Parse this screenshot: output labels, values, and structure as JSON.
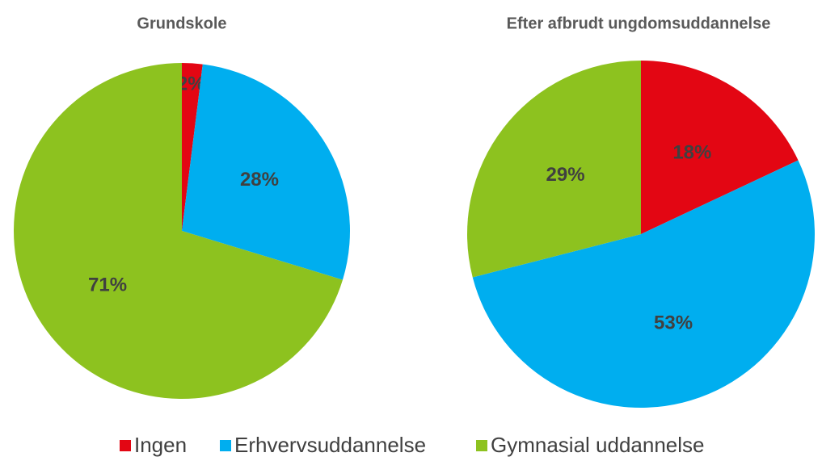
{
  "chart_data": [
    {
      "type": "pie",
      "title": "Grundskole",
      "categories": [
        "Ingen",
        "Erhvervsuddannelse",
        "Gymnasial uddannelse"
      ],
      "colors": [
        "#e30613",
        "#00aeef",
        "#8dc21f"
      ],
      "values": [
        2,
        28,
        71
      ],
      "value_labels": [
        "2%",
        "28%",
        "71%"
      ]
    },
    {
      "type": "pie",
      "title": "Efter afbrudt ungdomsuddannelse",
      "values": [
        18,
        53,
        29
      ],
      "value_labels": [
        "18%",
        "53%",
        "29%"
      ]
    }
  ]
}
